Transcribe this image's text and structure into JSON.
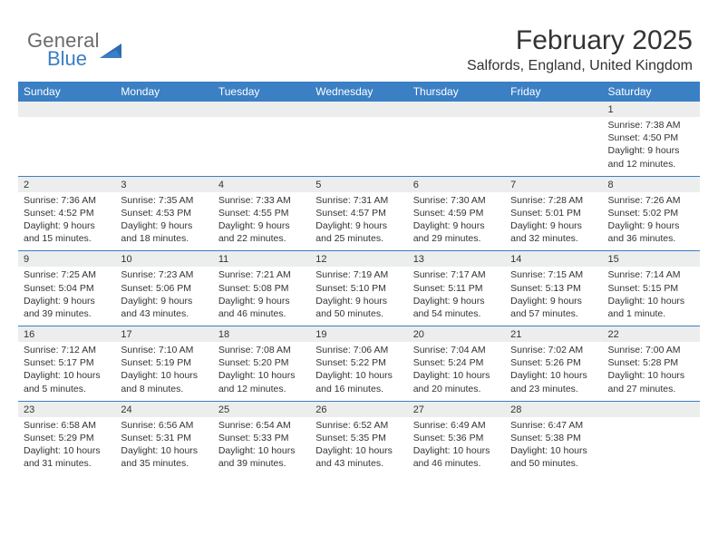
{
  "logo": {
    "word1": "General",
    "word2": "Blue"
  },
  "title": "February 2025",
  "location": "Salfords, England, United Kingdom",
  "colors": {
    "header_bar": "#3b7fc4",
    "daynum_bg": "#eceded",
    "text": "#333333",
    "logo_gray": "#6b6b6b",
    "logo_blue": "#3b7fc4",
    "background": "#ffffff"
  },
  "day_names": [
    "Sunday",
    "Monday",
    "Tuesday",
    "Wednesday",
    "Thursday",
    "Friday",
    "Saturday"
  ],
  "weeks": [
    [
      {
        "num": "",
        "sunrise": "",
        "sunset": "",
        "daylight": ""
      },
      {
        "num": "",
        "sunrise": "",
        "sunset": "",
        "daylight": ""
      },
      {
        "num": "",
        "sunrise": "",
        "sunset": "",
        "daylight": ""
      },
      {
        "num": "",
        "sunrise": "",
        "sunset": "",
        "daylight": ""
      },
      {
        "num": "",
        "sunrise": "",
        "sunset": "",
        "daylight": ""
      },
      {
        "num": "",
        "sunrise": "",
        "sunset": "",
        "daylight": ""
      },
      {
        "num": "1",
        "sunrise": "Sunrise: 7:38 AM",
        "sunset": "Sunset: 4:50 PM",
        "daylight": "Daylight: 9 hours and 12 minutes."
      }
    ],
    [
      {
        "num": "2",
        "sunrise": "Sunrise: 7:36 AM",
        "sunset": "Sunset: 4:52 PM",
        "daylight": "Daylight: 9 hours and 15 minutes."
      },
      {
        "num": "3",
        "sunrise": "Sunrise: 7:35 AM",
        "sunset": "Sunset: 4:53 PM",
        "daylight": "Daylight: 9 hours and 18 minutes."
      },
      {
        "num": "4",
        "sunrise": "Sunrise: 7:33 AM",
        "sunset": "Sunset: 4:55 PM",
        "daylight": "Daylight: 9 hours and 22 minutes."
      },
      {
        "num": "5",
        "sunrise": "Sunrise: 7:31 AM",
        "sunset": "Sunset: 4:57 PM",
        "daylight": "Daylight: 9 hours and 25 minutes."
      },
      {
        "num": "6",
        "sunrise": "Sunrise: 7:30 AM",
        "sunset": "Sunset: 4:59 PM",
        "daylight": "Daylight: 9 hours and 29 minutes."
      },
      {
        "num": "7",
        "sunrise": "Sunrise: 7:28 AM",
        "sunset": "Sunset: 5:01 PM",
        "daylight": "Daylight: 9 hours and 32 minutes."
      },
      {
        "num": "8",
        "sunrise": "Sunrise: 7:26 AM",
        "sunset": "Sunset: 5:02 PM",
        "daylight": "Daylight: 9 hours and 36 minutes."
      }
    ],
    [
      {
        "num": "9",
        "sunrise": "Sunrise: 7:25 AM",
        "sunset": "Sunset: 5:04 PM",
        "daylight": "Daylight: 9 hours and 39 minutes."
      },
      {
        "num": "10",
        "sunrise": "Sunrise: 7:23 AM",
        "sunset": "Sunset: 5:06 PM",
        "daylight": "Daylight: 9 hours and 43 minutes."
      },
      {
        "num": "11",
        "sunrise": "Sunrise: 7:21 AM",
        "sunset": "Sunset: 5:08 PM",
        "daylight": "Daylight: 9 hours and 46 minutes."
      },
      {
        "num": "12",
        "sunrise": "Sunrise: 7:19 AM",
        "sunset": "Sunset: 5:10 PM",
        "daylight": "Daylight: 9 hours and 50 minutes."
      },
      {
        "num": "13",
        "sunrise": "Sunrise: 7:17 AM",
        "sunset": "Sunset: 5:11 PM",
        "daylight": "Daylight: 9 hours and 54 minutes."
      },
      {
        "num": "14",
        "sunrise": "Sunrise: 7:15 AM",
        "sunset": "Sunset: 5:13 PM",
        "daylight": "Daylight: 9 hours and 57 minutes."
      },
      {
        "num": "15",
        "sunrise": "Sunrise: 7:14 AM",
        "sunset": "Sunset: 5:15 PM",
        "daylight": "Daylight: 10 hours and 1 minute."
      }
    ],
    [
      {
        "num": "16",
        "sunrise": "Sunrise: 7:12 AM",
        "sunset": "Sunset: 5:17 PM",
        "daylight": "Daylight: 10 hours and 5 minutes."
      },
      {
        "num": "17",
        "sunrise": "Sunrise: 7:10 AM",
        "sunset": "Sunset: 5:19 PM",
        "daylight": "Daylight: 10 hours and 8 minutes."
      },
      {
        "num": "18",
        "sunrise": "Sunrise: 7:08 AM",
        "sunset": "Sunset: 5:20 PM",
        "daylight": "Daylight: 10 hours and 12 minutes."
      },
      {
        "num": "19",
        "sunrise": "Sunrise: 7:06 AM",
        "sunset": "Sunset: 5:22 PM",
        "daylight": "Daylight: 10 hours and 16 minutes."
      },
      {
        "num": "20",
        "sunrise": "Sunrise: 7:04 AM",
        "sunset": "Sunset: 5:24 PM",
        "daylight": "Daylight: 10 hours and 20 minutes."
      },
      {
        "num": "21",
        "sunrise": "Sunrise: 7:02 AM",
        "sunset": "Sunset: 5:26 PM",
        "daylight": "Daylight: 10 hours and 23 minutes."
      },
      {
        "num": "22",
        "sunrise": "Sunrise: 7:00 AM",
        "sunset": "Sunset: 5:28 PM",
        "daylight": "Daylight: 10 hours and 27 minutes."
      }
    ],
    [
      {
        "num": "23",
        "sunrise": "Sunrise: 6:58 AM",
        "sunset": "Sunset: 5:29 PM",
        "daylight": "Daylight: 10 hours and 31 minutes."
      },
      {
        "num": "24",
        "sunrise": "Sunrise: 6:56 AM",
        "sunset": "Sunset: 5:31 PM",
        "daylight": "Daylight: 10 hours and 35 minutes."
      },
      {
        "num": "25",
        "sunrise": "Sunrise: 6:54 AM",
        "sunset": "Sunset: 5:33 PM",
        "daylight": "Daylight: 10 hours and 39 minutes."
      },
      {
        "num": "26",
        "sunrise": "Sunrise: 6:52 AM",
        "sunset": "Sunset: 5:35 PM",
        "daylight": "Daylight: 10 hours and 43 minutes."
      },
      {
        "num": "27",
        "sunrise": "Sunrise: 6:49 AM",
        "sunset": "Sunset: 5:36 PM",
        "daylight": "Daylight: 10 hours and 46 minutes."
      },
      {
        "num": "28",
        "sunrise": "Sunrise: 6:47 AM",
        "sunset": "Sunset: 5:38 PM",
        "daylight": "Daylight: 10 hours and 50 minutes."
      },
      {
        "num": "",
        "sunrise": "",
        "sunset": "",
        "daylight": ""
      }
    ]
  ]
}
